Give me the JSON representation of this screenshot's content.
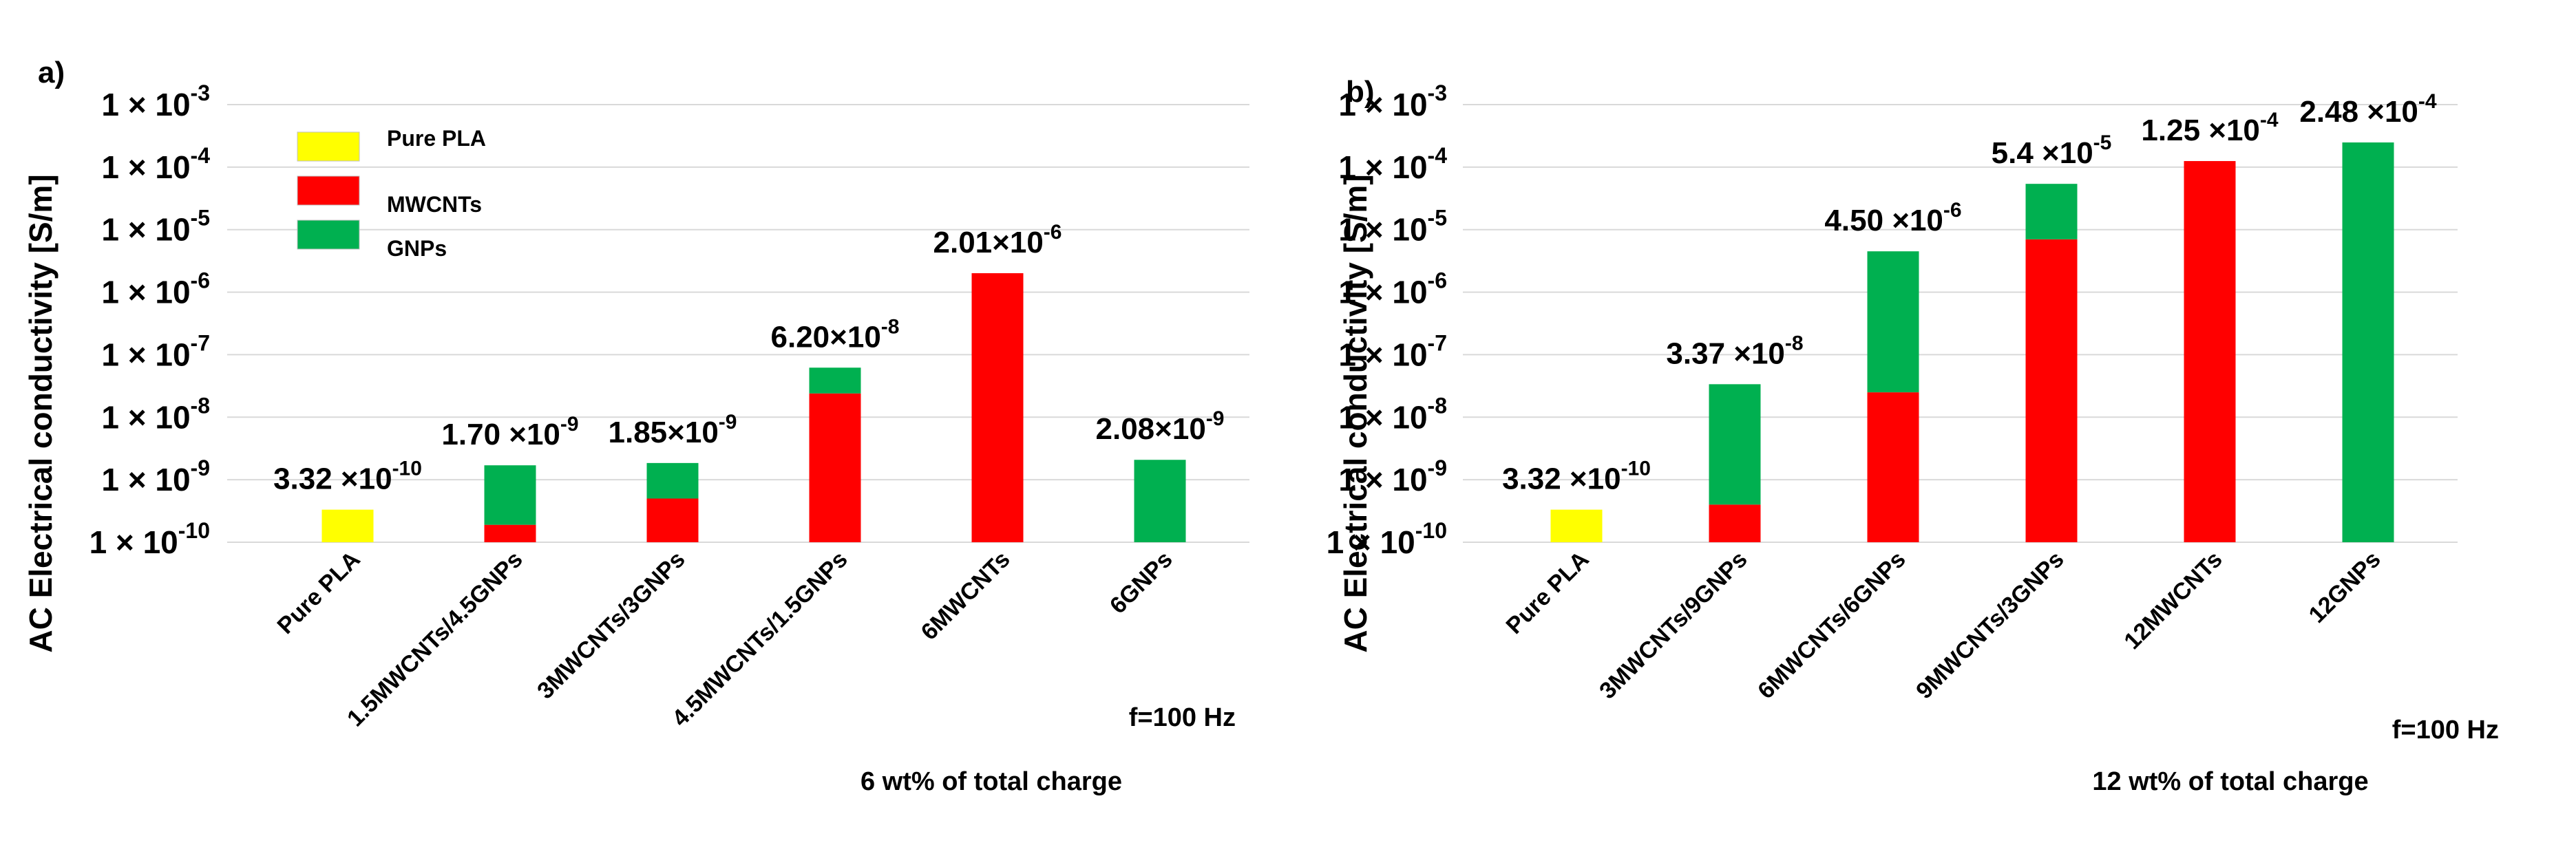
{
  "colors": {
    "pure_pla": "#ffff00",
    "mwcnts": "#ff0000",
    "gnps": "#00b050",
    "grid": "#d9d9d9"
  },
  "ytick_labels": [
    "1 × 10",
    "1 × 10",
    "1 × 10",
    "1 × 10",
    "1 × 10",
    "1 × 10",
    "1 × 10",
    "1 × 10"
  ],
  "ytick_exponents": [
    "-10",
    "-9",
    "-8",
    "-7",
    "-6",
    "-5",
    "-4",
    "-3"
  ],
  "ylabel": "AC Electrical conductivity [S/m]",
  "frequency_note": "f=100 Hz",
  "legend": {
    "pure_pla": "Pure PLA",
    "mwcnts": "MWCNTs",
    "gnps": "GNPs"
  },
  "chart_data": [
    {
      "type": "bar",
      "stacked": true,
      "log_scale": true,
      "panel_label": "a)",
      "title": "",
      "xlabel": "6 wt% of total charge",
      "ylabel": "AC Electrical conductivity [S/m]",
      "ylim": [
        1e-10,
        0.001
      ],
      "grid": true,
      "legend_position": "top-left",
      "categories": [
        "Pure PLA",
        "1.5MWCNTs/4.5GNPs",
        "3MWCNTs/3GNPs",
        "4.5MWCNTs/1.5GNPs",
        "6MWCNTs",
        "6GNPs"
      ],
      "bars": [
        {
          "segments": [
            {
              "series": "Pure PLA",
              "color": "yellow",
              "to": 3.32e-10
            }
          ],
          "label_base": "3.32 ×10",
          "label_exp": "-10"
        },
        {
          "segments": [
            {
              "series": "MWCNTs",
              "color": "red",
              "to": 1.9e-10
            },
            {
              "series": "GNPs",
              "color": "green",
              "to": 1.7e-09
            }
          ],
          "label_base": "1.70 ×10",
          "label_exp": "-9"
        },
        {
          "segments": [
            {
              "series": "MWCNTs",
              "color": "red",
              "to": 5e-10
            },
            {
              "series": "GNPs",
              "color": "green",
              "to": 1.85e-09
            }
          ],
          "label_base": "1.85×10",
          "label_exp": "-9"
        },
        {
          "segments": [
            {
              "series": "MWCNTs",
              "color": "red",
              "to": 2.4e-08
            },
            {
              "series": "GNPs",
              "color": "green",
              "to": 6.2e-08
            }
          ],
          "label_base": "6.20×10",
          "label_exp": "-8"
        },
        {
          "segments": [
            {
              "series": "MWCNTs",
              "color": "red",
              "to": 2.01e-06
            }
          ],
          "label_base": "2.01×10",
          "label_exp": "-6"
        },
        {
          "segments": [
            {
              "series": "GNPs",
              "color": "green",
              "to": 2.08e-09
            }
          ],
          "label_base": "2.08×10",
          "label_exp": "-9"
        }
      ]
    },
    {
      "type": "bar",
      "stacked": true,
      "log_scale": true,
      "panel_label": "b)",
      "title": "",
      "xlabel": "12 wt% of total charge",
      "ylabel": "AC Electrical conductivity [S/m]",
      "ylim": [
        1e-10,
        0.001
      ],
      "grid": true,
      "categories": [
        "Pure PLA",
        "3MWCNTs/9GNPs",
        "6MWCNTs/6GNPs",
        "9MWCNTs/3GNPs",
        "12MWCNTs",
        "12GNPs"
      ],
      "bars": [
        {
          "segments": [
            {
              "series": "Pure PLA",
              "color": "yellow",
              "to": 3.32e-10
            }
          ],
          "label_base": "3.32 ×10",
          "label_exp": "-10"
        },
        {
          "segments": [
            {
              "series": "MWCNTs",
              "color": "red",
              "to": 4e-10
            },
            {
              "series": "GNPs",
              "color": "green",
              "to": 3.37e-08
            }
          ],
          "label_base": "3.37 ×10",
          "label_exp": "-8"
        },
        {
          "segments": [
            {
              "series": "MWCNTs",
              "color": "red",
              "to": 2.5e-08
            },
            {
              "series": "GNPs",
              "color": "green",
              "to": 4.5e-06
            }
          ],
          "label_base": "4.50 ×10",
          "label_exp": "-6"
        },
        {
          "segments": [
            {
              "series": "MWCNTs",
              "color": "red",
              "to": 7e-06
            },
            {
              "series": "GNPs",
              "color": "green",
              "to": 5.4e-05
            }
          ],
          "label_base": "5.4 ×10",
          "label_exp": "-5"
        },
        {
          "segments": [
            {
              "series": "MWCNTs",
              "color": "red",
              "to": 0.000125
            }
          ],
          "label_base": "1.25 ×10",
          "label_exp": "-4"
        },
        {
          "segments": [
            {
              "series": "GNPs",
              "color": "green",
              "to": 0.000248
            }
          ],
          "label_base": "2.48 ×10",
          "label_exp": "-4"
        }
      ]
    }
  ]
}
